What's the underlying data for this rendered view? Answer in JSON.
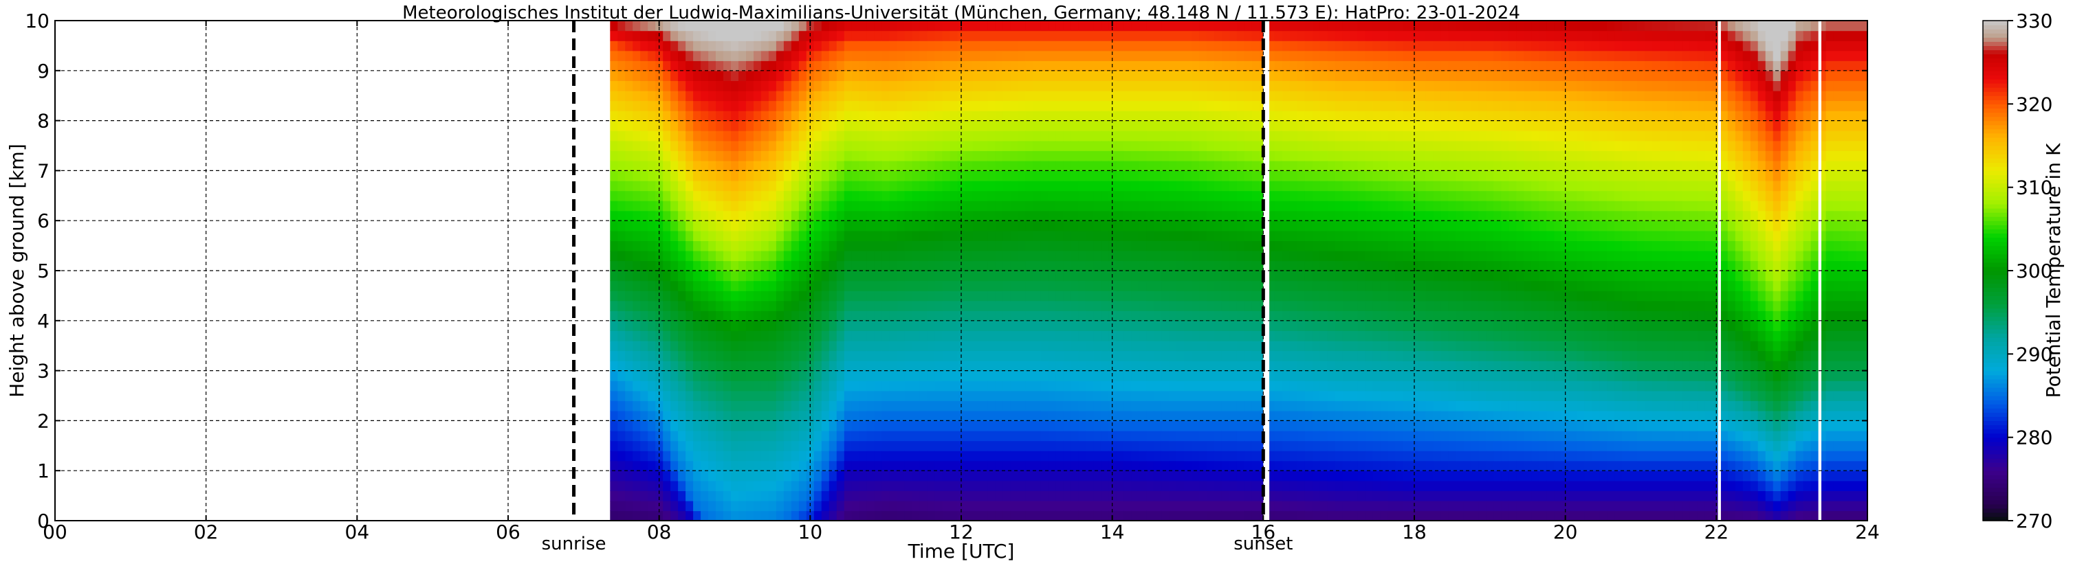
{
  "chart_data": {
    "type": "heatmap",
    "title": "Meteorologisches Institut der Ludwig-Maximilians-Universität (München, Germany; 48.148 N / 11.573 E):    HatPro: 23-01-2024",
    "xlabel": "Time [UTC]",
    "ylabel": "Height above ground [km]",
    "xlim": [
      0,
      24
    ],
    "ylim": [
      0,
      10
    ],
    "x_ticks": [
      0,
      2,
      4,
      6,
      8,
      10,
      12,
      14,
      16,
      18,
      20,
      22,
      24
    ],
    "x_tick_labels": [
      "00",
      "02",
      "04",
      "06",
      "08",
      "10",
      "12",
      "14",
      "16",
      "18",
      "20",
      "22",
      "24"
    ],
    "y_ticks": [
      0,
      1,
      2,
      3,
      4,
      5,
      6,
      7,
      8,
      9,
      10
    ],
    "y_tick_labels": [
      "0",
      "1",
      "2",
      "3",
      "4",
      "5",
      "6",
      "7",
      "8",
      "9",
      "10"
    ],
    "grid": true,
    "data_start_hour": 7.35,
    "data_end_hour": 24,
    "data_gaps_hours": [
      [
        16.0,
        16.08
      ],
      [
        22.02,
        22.06
      ],
      [
        23.35,
        23.39
      ]
    ],
    "markers": [
      {
        "label": "sunrise",
        "hour": 6.87
      },
      {
        "label": "sunset",
        "hour": 16.0
      }
    ],
    "colorbar": {
      "label": "Potential Temperature in K",
      "min": 270,
      "max": 330,
      "ticks": [
        270,
        280,
        290,
        300,
        310,
        320,
        330
      ]
    },
    "field": {
      "description": "potential temperature isentrope heights (km) vs time",
      "times": [
        7.35,
        8.0,
        8.5,
        9.0,
        9.5,
        10.0,
        10.5,
        11.0,
        12.0,
        13.0,
        14.0,
        15.0,
        16.0,
        17.0,
        18.0,
        19.0,
        20.0,
        21.0,
        22.0,
        22.5,
        22.8,
        23.1,
        23.5,
        24.0
      ],
      "theta_levels": [
        276,
        280,
        285,
        290,
        295,
        300,
        305,
        310,
        315,
        320,
        325
      ],
      "theta_heights": [
        [
          0.5,
          1.4,
          2.5,
          3.5,
          4.4,
          5.4,
          6.4,
          7.6,
          8.6,
          9.5,
          9.85
        ],
        [
          0.3,
          1.0,
          1.8,
          2.8,
          3.9,
          5.0,
          6.2,
          7.3,
          8.2,
          9.1,
          9.6
        ],
        [
          -0.5,
          0.0,
          0.2,
          1.8,
          3.0,
          4.2,
          5.2,
          6.1,
          7.0,
          8.0,
          8.9
        ],
        [
          -1,
          -0.8,
          -0.5,
          1.2,
          2.6,
          3.8,
          4.7,
          5.6,
          6.6,
          7.6,
          8.6
        ],
        [
          -1,
          -0.8,
          -0.3,
          1.3,
          2.6,
          4.0,
          5.0,
          6.0,
          7.1,
          8.2,
          9.0
        ],
        [
          -1,
          -0.2,
          0.5,
          1.8,
          3.2,
          4.6,
          6.0,
          7.2,
          8.2,
          9.1,
          9.7
        ],
        [
          0.3,
          1.2,
          2.0,
          3.2,
          4.4,
          5.6,
          6.7,
          7.8,
          8.7,
          9.5,
          9.95
        ],
        [
          0.4,
          1.2,
          2.1,
          3.2,
          4.4,
          5.6,
          6.6,
          7.7,
          8.6,
          9.5,
          9.95
        ],
        [
          0.3,
          1.2,
          2.1,
          3.3,
          4.5,
          5.8,
          6.9,
          7.9,
          8.8,
          9.6,
          10.05
        ],
        [
          0.3,
          1.2,
          2.1,
          3.3,
          4.5,
          5.9,
          7.0,
          8.0,
          8.9,
          9.6,
          10.05
        ],
        [
          0.3,
          1.2,
          2.0,
          3.2,
          4.4,
          5.8,
          7.0,
          8.0,
          8.9,
          9.6,
          10.05
        ],
        [
          0.3,
          1.1,
          2.0,
          3.1,
          4.3,
          5.7,
          6.9,
          8.0,
          8.9,
          9.6,
          10.05
        ],
        [
          0.3,
          1.0,
          2.0,
          3.1,
          4.2,
          5.5,
          6.7,
          7.8,
          8.8,
          9.5,
          10.0
        ],
        [
          0.2,
          0.9,
          1.9,
          2.9,
          4.0,
          5.3,
          6.6,
          7.6,
          8.6,
          9.4,
          9.95
        ],
        [
          0.2,
          0.8,
          1.8,
          2.8,
          3.8,
          5.1,
          6.4,
          7.5,
          8.5,
          9.3,
          9.9
        ],
        [
          0.2,
          0.8,
          1.7,
          2.6,
          3.6,
          4.9,
          6.2,
          7.4,
          8.4,
          9.3,
          9.85
        ],
        [
          0.2,
          0.8,
          1.6,
          2.5,
          3.4,
          4.6,
          5.9,
          7.2,
          8.3,
          9.2,
          9.8
        ],
        [
          0.2,
          0.8,
          1.5,
          2.3,
          3.1,
          4.3,
          5.7,
          7.0,
          8.1,
          9.1,
          9.75
        ],
        [
          0.2,
          0.8,
          1.5,
          2.2,
          3.0,
          4.2,
          5.6,
          6.9,
          8.0,
          9.0,
          9.7
        ],
        [
          0.1,
          0.6,
          1.2,
          1.9,
          2.5,
          3.5,
          4.6,
          5.9,
          7.0,
          8.2,
          9.1
        ],
        [
          -0.1,
          0.3,
          0.8,
          1.5,
          2.2,
          3.0,
          4.0,
          5.2,
          6.3,
          7.5,
          8.4
        ],
        [
          0.1,
          0.6,
          1.2,
          1.9,
          2.5,
          3.5,
          4.6,
          6.0,
          7.2,
          8.4,
          9.3
        ],
        [
          0.2,
          0.7,
          1.4,
          2.2,
          2.9,
          4.1,
          5.5,
          6.8,
          7.9,
          8.9,
          9.6
        ],
        [
          0.2,
          0.7,
          1.4,
          2.2,
          2.9,
          4.1,
          5.4,
          6.8,
          7.9,
          8.9,
          9.6
        ]
      ]
    }
  }
}
